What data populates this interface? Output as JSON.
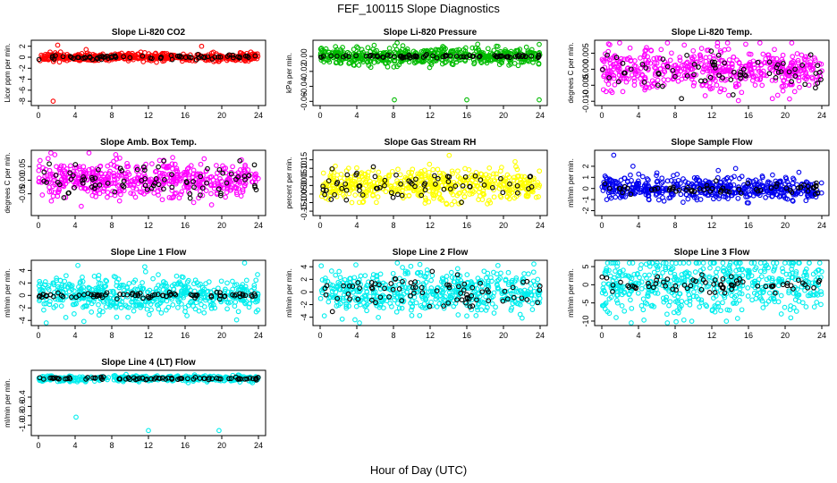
{
  "figure": {
    "title": "FEF_100115  Slope Diagnostics",
    "xlabel": "Hour of Day (UTC)"
  },
  "chart_data": [
    {
      "type": "scatter",
      "title": "Slope Li-820 CO2",
      "ylabel": "Licor ppm per min.",
      "color": "#ff0000",
      "xlim": [
        0,
        24
      ],
      "ylim": [
        -8.3,
        2.6
      ],
      "x_ticks": [
        0,
        4,
        8,
        12,
        16,
        20,
        24
      ],
      "y_ticks": [
        2,
        0,
        -2,
        -4,
        -6,
        -8
      ],
      "spread": 0.35,
      "n": 480,
      "black_spread": 0.2,
      "n_black": 70,
      "outliers": [
        {
          "x": 2.1,
          "y": 2.2
        },
        {
          "x": 1.6,
          "y": -8.0
        },
        {
          "x": 17.8,
          "y": 2.0
        },
        {
          "x": 5.2,
          "y": 1.4
        }
      ]
    },
    {
      "type": "scatter",
      "title": "Slope Li-820 Pressure",
      "ylabel": "kPa per min.",
      "color": "#00bb00",
      "xlim": [
        0,
        24
      ],
      "ylim": [
        -0.062,
        0.018
      ],
      "x_ticks": [
        0,
        4,
        8,
        12,
        16,
        20,
        24
      ],
      "y_ticks": [
        0.0,
        -0.02,
        -0.04,
        -0.06
      ],
      "y_ticklabels": [
        "0.00",
        "-0.02",
        "-0.04",
        "-0.06"
      ],
      "spread": 0.0055,
      "n": 520,
      "black_spread": 0.001,
      "n_black": 80,
      "outliers": [
        {
          "x": 8.1,
          "y": -0.058
        },
        {
          "x": 16.0,
          "y": -0.058
        },
        {
          "x": 23.9,
          "y": -0.058
        },
        {
          "x": 4.0,
          "y": 0.013
        },
        {
          "x": 13.5,
          "y": 0.012
        }
      ]
    },
    {
      "type": "scatter",
      "title": "Slope Li-820 Temp.",
      "ylabel": "degrees C per min.",
      "color": "#ff00ff",
      "xlim": [
        0,
        24
      ],
      "ylim": [
        -0.0105,
        0.0082
      ],
      "x_ticks": [
        0,
        4,
        8,
        12,
        16,
        20,
        24
      ],
      "y_ticks": [
        0.005,
        0.0,
        -0.005,
        -0.01
      ],
      "y_ticklabels": [
        "0.005",
        "0.000",
        "-0.005",
        "-0.010"
      ],
      "spread": 0.0032,
      "n": 520,
      "black_spread": 0.0028,
      "n_black": 70,
      "outliers": [
        {
          "x": 15.7,
          "y": 0.0078
        },
        {
          "x": 14.9,
          "y": -0.0098
        }
      ]
    },
    {
      "type": "scatter",
      "title": "Slope Amb. Box Temp.",
      "ylabel": "degrees C per min.",
      "color": "#ff00ff",
      "xlim": [
        0,
        24
      ],
      "ylim": [
        -0.12,
        0.1
      ],
      "x_ticks": [
        0,
        4,
        8,
        12,
        16,
        20,
        24
      ],
      "y_ticks": [
        0.05,
        0.0,
        -0.05
      ],
      "y_ticklabels": [
        "0.05",
        "0.00",
        "-0.05"
      ],
      "spread": 0.035,
      "n": 520,
      "black_spread": 0.03,
      "n_black": 80,
      "outliers": []
    },
    {
      "type": "scatter",
      "title": "Slope Gas Stream RH",
      "ylabel": "percent per min.",
      "color": "#ffff00",
      "xlim": [
        0,
        24
      ],
      "ylim": [
        -0.16,
        0.19
      ],
      "x_ticks": [
        0,
        4,
        8,
        12,
        16,
        20,
        24
      ],
      "y_ticks": [
        0.15,
        0.1,
        0.05,
        0.0,
        -0.05,
        -0.1,
        -0.15
      ],
      "y_ticklabels": [
        "0.15",
        "0.10",
        "0.05",
        "0.00",
        "-0.05",
        "-0.10",
        "-0.15"
      ],
      "spread": 0.045,
      "n": 520,
      "black_spread": 0.04,
      "n_black": 70,
      "outliers": []
    },
    {
      "type": "scatter",
      "title": "Slope Sample Flow",
      "ylabel": "ml/min per min.",
      "color": "#0000ee",
      "xlim": [
        0,
        24
      ],
      "ylim": [
        -2.2,
        3.2
      ],
      "x_ticks": [
        0,
        4,
        8,
        12,
        16,
        20,
        24
      ],
      "y_ticks": [
        2,
        1,
        0,
        -1,
        -2
      ],
      "spread": 0.5,
      "n": 520,
      "black_spread": 0.25,
      "n_black": 60,
      "outliers": [
        {
          "x": 1.3,
          "y": 3.0
        },
        {
          "x": 3.4,
          "y": 2.0
        },
        {
          "x": 14.6,
          "y": 1.8
        }
      ]
    },
    {
      "type": "scatter",
      "title": "Slope Line 1 Flow",
      "ylabel": "ml/min per min.",
      "color": "#00eeee",
      "xlim": [
        0,
        24
      ],
      "ylim": [
        -4.4,
        5.2
      ],
      "x_ticks": [
        0,
        4,
        8,
        12,
        16,
        20,
        24
      ],
      "y_ticks": [
        4,
        2,
        0,
        -2,
        -4
      ],
      "spread": 1.4,
      "n": 520,
      "black_spread": 0.25,
      "n_black": 80,
      "outliers": [
        {
          "x": 4.3,
          "y": 4.8
        },
        {
          "x": 11.6,
          "y": 4.6
        }
      ]
    },
    {
      "type": "scatter",
      "title": "Slope Line 2 Flow",
      "ylabel": "ml/min per min.",
      "color": "#00eeee",
      "xlim": [
        0,
        24
      ],
      "ylim": [
        -4.9,
        4.6
      ],
      "x_ticks": [
        0,
        4,
        8,
        12,
        16,
        20,
        24
      ],
      "y_ticks": [
        4,
        2,
        0,
        -2,
        -4
      ],
      "spread": 1.6,
      "n": 520,
      "black_spread": 1.3,
      "n_black": 80,
      "outliers": [
        {
          "x": 16.0,
          "y": -3.8
        },
        {
          "x": 3.8,
          "y": -4.4
        },
        {
          "x": 19.4,
          "y": 4.2
        },
        {
          "x": 3.9,
          "y": 4.3
        }
      ]
    },
    {
      "type": "scatter",
      "title": "Slope Line 3 Flow",
      "ylabel": "ml/min per min.",
      "color": "#00eeee",
      "xlim": [
        0,
        24
      ],
      "ylim": [
        -10.5,
        6
      ],
      "x_ticks": [
        0,
        4,
        8,
        12,
        16,
        20,
        24
      ],
      "y_ticks": [
        5,
        0,
        -5,
        -10
      ],
      "spread": 4.0,
      "n": 540,
      "black_spread": 1.2,
      "n_black": 70,
      "outliers": [
        {
          "x": 4.3,
          "y": 5.5
        }
      ]
    },
    {
      "type": "scatter",
      "title": "Slope Line 4 (LT) Flow",
      "ylabel": "ml/min per min.",
      "color": "#00eeee",
      "xlim": [
        0,
        24
      ],
      "ylim": [
        -1.17,
        0.12
      ],
      "x_ticks": [
        0,
        4,
        8,
        12,
        16,
        20,
        24
      ],
      "y_ticks": [
        -0.4,
        -0.6,
        -0.8,
        -1.0
      ],
      "y_ticklabels": [
        "-0.4",
        "-0.6",
        "-0.8",
        "-1.0"
      ],
      "spread": 0.03,
      "n": 420,
      "black_spread": 0.015,
      "n_black": 80,
      "outliers": [
        {
          "x": 4.1,
          "y": -0.83
        },
        {
          "x": 12.0,
          "y": -1.12
        },
        {
          "x": 19.7,
          "y": -1.12
        }
      ]
    }
  ]
}
